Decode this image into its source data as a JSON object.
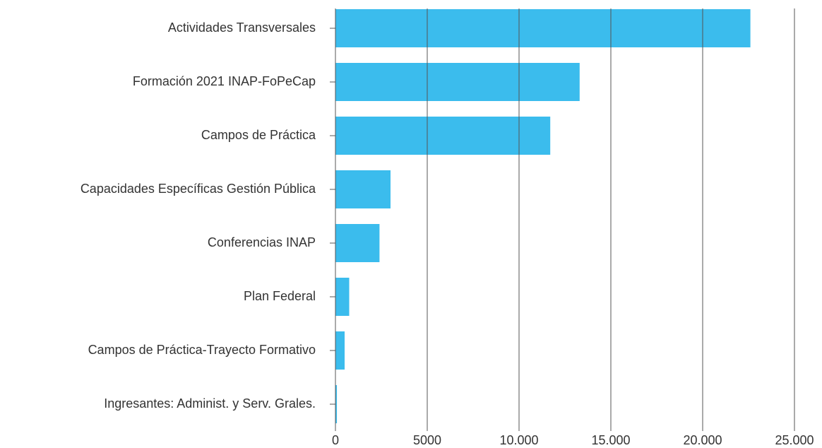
{
  "chart_data": {
    "type": "bar",
    "orientation": "horizontal",
    "categories": [
      "Actividades Transversales",
      "Formación 2021 INAP-FoPeCap",
      "Campos de Práctica",
      "Capacidades Específicas Gestión Pública",
      "Conferencias INAP",
      "Plan Federal",
      "Campos de Práctica-Trayecto Formativo",
      "Ingresantes: Administ. y Serv. Grales."
    ],
    "values": [
      22600,
      13300,
      11700,
      3000,
      2400,
      750,
      500,
      80
    ],
    "color": "#3bbced",
    "xlim": [
      0,
      25000
    ],
    "xticks": [
      0,
      5000,
      {
        "value": 10000,
        "label": "10.000"
      },
      {
        "value": 15000,
        "label": "15.000"
      },
      {
        "value": 20000,
        "label": "20.000"
      },
      {
        "value": 25000,
        "label": "25.000"
      }
    ],
    "grid": true
  }
}
